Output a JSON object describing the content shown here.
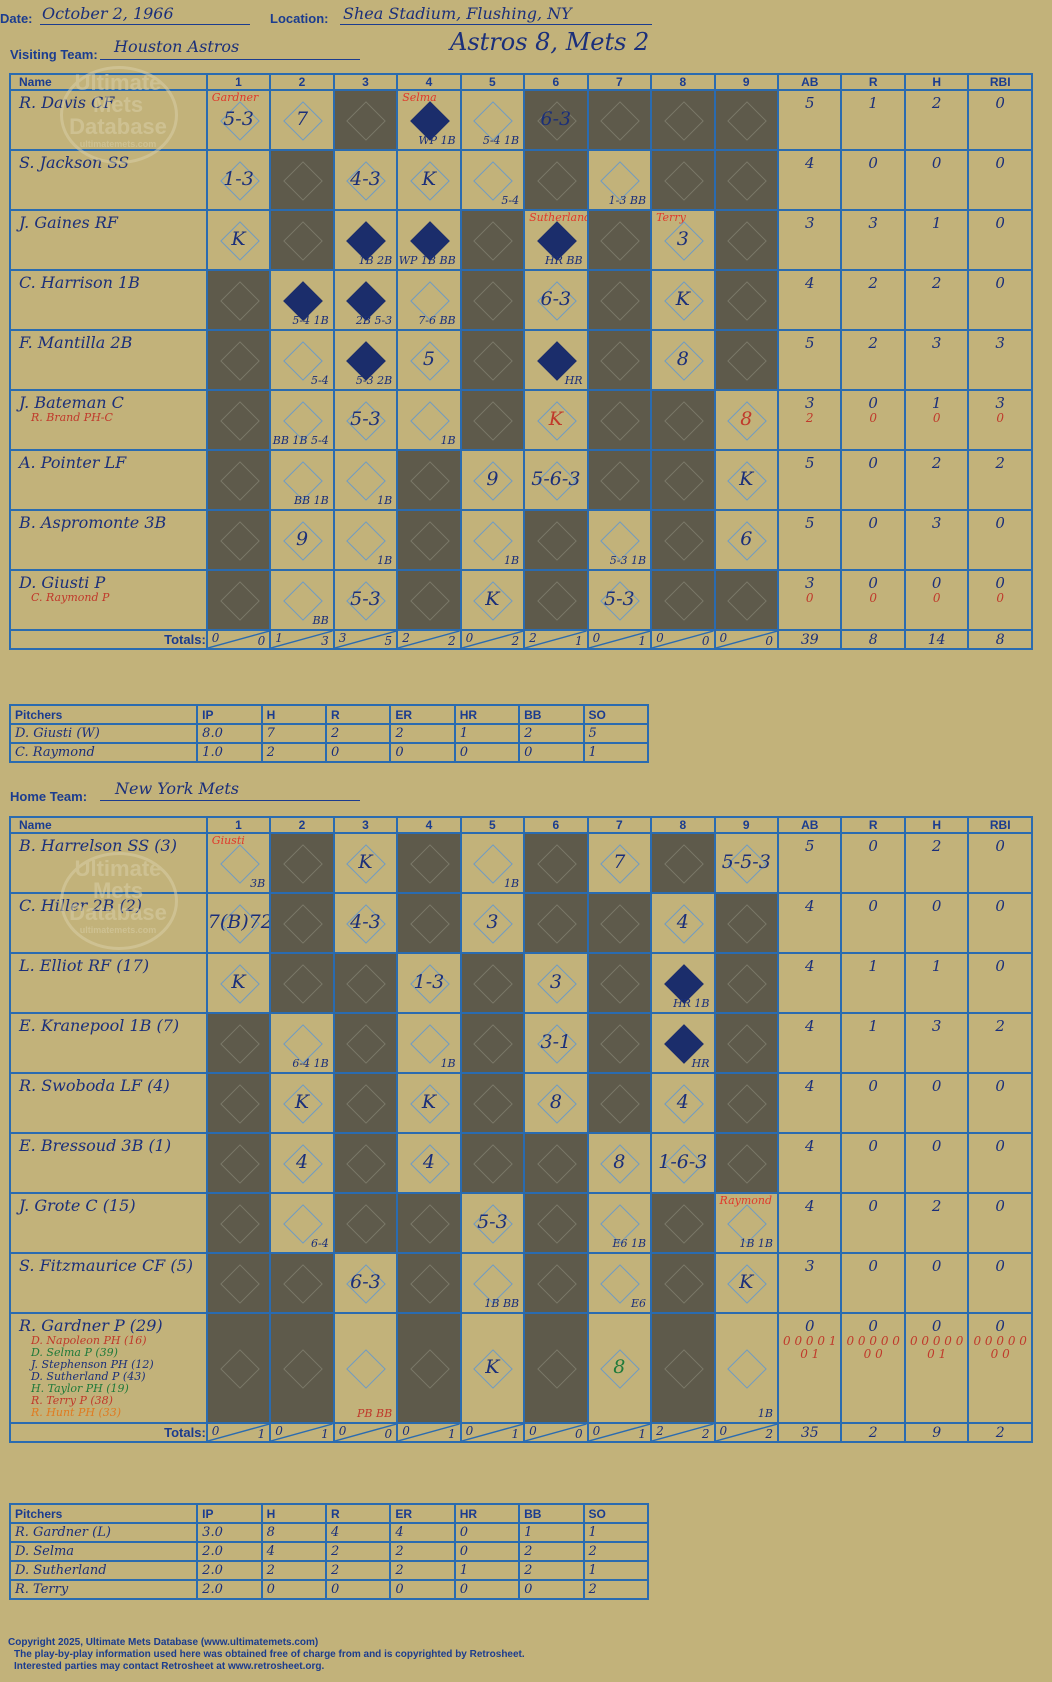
{
  "header": {
    "date_label": "Date:",
    "date": "October 2, 1966",
    "location_label": "Location:",
    "location": "Shea Stadium, Flushing, NY",
    "visiting_label": "Visiting Team:",
    "visiting_team": "Houston Astros",
    "home_label": "Home Team:",
    "home_team": "New York Mets",
    "game_title": "Astros 8, Mets 2"
  },
  "watermark": {
    "line1": "Ultimate",
    "line2": "Mets",
    "line3": "Database",
    "url": "ultimatemets.com"
  },
  "grid_headers": {
    "name": "Name",
    "innings": [
      "1",
      "2",
      "3",
      "4",
      "5",
      "6",
      "7",
      "8",
      "9"
    ],
    "stats": [
      "AB",
      "R",
      "H",
      "RBI"
    ]
  },
  "totals_label": "Totals:",
  "rh": {
    "r": "R",
    "h": "H"
  },
  "visitors": {
    "rows": [
      {
        "name": "R. Davis CF",
        "subs": [],
        "cells": [
          {
            "r": "5-3",
            "pit": "Gardner"
          },
          {
            "r": "7"
          },
          {
            "dark": true
          },
          {
            "r": "",
            "scored": true,
            "pit": "Selma",
            "n": "WP 1B"
          },
          {
            "r": "",
            "n": "5-4 1B"
          },
          {
            "dark": true,
            "r": "6-3"
          },
          {
            "dark": true
          },
          {
            "dark": true
          },
          {
            "dark": true
          }
        ],
        "stats": [
          "5",
          "1",
          "2",
          "0"
        ],
        "stats2": []
      },
      {
        "name": "S. Jackson SS",
        "subs": [],
        "cells": [
          {
            "r": "1-3"
          },
          {
            "dark": true
          },
          {
            "r": "4-3"
          },
          {
            "r": "K"
          },
          {
            "r": "",
            "n": "5-4"
          },
          {
            "dark": true
          },
          {
            "r": "",
            "n": "1-3 BB"
          },
          {
            "dark": true
          },
          {
            "dark": true
          }
        ],
        "stats": [
          "4",
          "0",
          "0",
          "0"
        ],
        "stats2": []
      },
      {
        "name": "J. Gaines RF",
        "subs": [],
        "cells": [
          {
            "r": "K"
          },
          {
            "dark": true
          },
          {
            "r": "",
            "scored": true,
            "n": "1B 2B"
          },
          {
            "r": "",
            "scored": true,
            "n": "WP 1B BB"
          },
          {
            "dark": true
          },
          {
            "r": "",
            "scored": true,
            "pit": "Sutherland",
            "n": "HR BB"
          },
          {
            "dark": true
          },
          {
            "r": "3",
            "pit": "Terry"
          },
          {
            "dark": true
          }
        ],
        "stats": [
          "3",
          "3",
          "1",
          "0"
        ],
        "stats2": []
      },
      {
        "name": "C. Harrison 1B",
        "subs": [],
        "cells": [
          {
            "dark": true
          },
          {
            "r": "",
            "scored": true,
            "n": "5-4 1B"
          },
          {
            "r": "",
            "scored": true,
            "n": "2B 5-3"
          },
          {
            "r": "",
            "n": "7-6 BB"
          },
          {
            "dark": true
          },
          {
            "r": "6-3"
          },
          {
            "dark": true
          },
          {
            "r": "K"
          },
          {
            "dark": true
          }
        ],
        "stats": [
          "4",
          "2",
          "2",
          "0"
        ],
        "stats2": []
      },
      {
        "name": "F. Mantilla 2B",
        "subs": [],
        "cells": [
          {
            "dark": true
          },
          {
            "r": "",
            "n": "5-4"
          },
          {
            "r": "",
            "scored": true,
            "n": "5-3 2B"
          },
          {
            "r": "5"
          },
          {
            "dark": true
          },
          {
            "r": "",
            "scored": true,
            "n": "HR"
          },
          {
            "dark": true
          },
          {
            "r": "8"
          },
          {
            "dark": true
          }
        ],
        "stats": [
          "5",
          "2",
          "3",
          "3"
        ],
        "stats2": []
      },
      {
        "name": "J. Bateman C",
        "subs": [
          {
            "t": "R. Brand PH-C",
            "c": "red"
          }
        ],
        "cells": [
          {
            "dark": true
          },
          {
            "r": "",
            "n": "BB 1B 5-4"
          },
          {
            "r": "5-3"
          },
          {
            "r": "",
            "n": "1B"
          },
          {
            "dark": true
          },
          {
            "r": "K",
            "red": true
          },
          {
            "dark": true
          },
          {
            "dark": true
          },
          {
            "r": "8",
            "red": true
          }
        ],
        "stats": [
          "3",
          "0",
          "1",
          "3"
        ],
        "stats2": [
          "2",
          "0",
          "0",
          "0"
        ]
      },
      {
        "name": "A. Pointer LF",
        "subs": [],
        "cells": [
          {
            "dark": true
          },
          {
            "r": "",
            "n": "BB 1B"
          },
          {
            "r": "",
            "n": "1B"
          },
          {
            "dark": true
          },
          {
            "r": "9"
          },
          {
            "r": "5-6-3"
          },
          {
            "dark": true
          },
          {
            "dark": true
          },
          {
            "r": "K"
          }
        ],
        "stats": [
          "5",
          "0",
          "2",
          "2"
        ],
        "stats2": []
      },
      {
        "name": "B. Aspromonte 3B",
        "subs": [],
        "cells": [
          {
            "dark": true
          },
          {
            "r": "9"
          },
          {
            "r": "",
            "n": "1B"
          },
          {
            "dark": true
          },
          {
            "r": "",
            "n": "1B"
          },
          {
            "dark": true
          },
          {
            "r": "",
            "n": "5-3 1B"
          },
          {
            "dark": true
          },
          {
            "r": "6"
          }
        ],
        "stats": [
          "5",
          "0",
          "3",
          "0"
        ],
        "stats2": []
      },
      {
        "name": "D. Giusti P",
        "subs": [
          {
            "t": "C. Raymond P",
            "c": "red"
          }
        ],
        "cells": [
          {
            "dark": true
          },
          {
            "r": "",
            "n": "BB"
          },
          {
            "r": "5-3"
          },
          {
            "dark": true
          },
          {
            "r": "K"
          },
          {
            "dark": true
          },
          {
            "r": "5-3"
          },
          {
            "dark": true
          },
          {
            "dark": true
          }
        ],
        "stats": [
          "3",
          "0",
          "0",
          "0"
        ],
        "stats2": [
          "0",
          "0",
          "0",
          "0"
        ]
      }
    ],
    "totals": [
      [
        "0",
        "0"
      ],
      [
        "1",
        "3"
      ],
      [
        "3",
        "5"
      ],
      [
        "2",
        "2"
      ],
      [
        "0",
        "2"
      ],
      [
        "2",
        "1"
      ],
      [
        "0",
        "1"
      ],
      [
        "0",
        "0"
      ],
      [
        "0",
        "0"
      ]
    ],
    "total_stats": [
      "39",
      "8",
      "14",
      "8"
    ]
  },
  "visitor_pitchers": {
    "headers": [
      "Pitchers",
      "IP",
      "H",
      "R",
      "ER",
      "HR",
      "BB",
      "SO"
    ],
    "rows": [
      [
        "D. Giusti (W)",
        "8.0",
        "7",
        "2",
        "2",
        "1",
        "2",
        "5"
      ],
      [
        "C. Raymond",
        "1.0",
        "2",
        "0",
        "0",
        "0",
        "0",
        "1"
      ]
    ]
  },
  "home": {
    "rows": [
      {
        "name": "B. Harrelson SS (3)",
        "subs": [],
        "cells": [
          {
            "r": "",
            "pit": "Giusti",
            "n": "3B"
          },
          {
            "dark": true
          },
          {
            "r": "K"
          },
          {
            "dark": true
          },
          {
            "r": "",
            "n": "1B"
          },
          {
            "dark": true
          },
          {
            "r": "7"
          },
          {
            "dark": true
          },
          {
            "r": "5-5-3"
          }
        ],
        "stats": [
          "5",
          "0",
          "2",
          "0"
        ],
        "stats2": []
      },
      {
        "name": "C. Hiller 2B (2)",
        "subs": [],
        "cells": [
          {
            "r": "7(B)72"
          },
          {
            "dark": true
          },
          {
            "r": "4-3"
          },
          {
            "dark": true
          },
          {
            "r": "3"
          },
          {
            "dark": true
          },
          {
            "dark": true
          },
          {
            "r": "4"
          },
          {
            "dark": true
          }
        ],
        "stats": [
          "4",
          "0",
          "0",
          "0"
        ],
        "stats2": []
      },
      {
        "name": "L. Elliot RF (17)",
        "subs": [],
        "cells": [
          {
            "r": "K"
          },
          {
            "dark": true
          },
          {
            "dark": true
          },
          {
            "r": "1-3"
          },
          {
            "dark": true
          },
          {
            "r": "3"
          },
          {
            "dark": true
          },
          {
            "r": "",
            "scored": true,
            "n": "HR 1B"
          },
          {
            "dark": true
          }
        ],
        "stats": [
          "4",
          "1",
          "1",
          "0"
        ],
        "stats2": []
      },
      {
        "name": "E. Kranepool 1B (7)",
        "subs": [],
        "cells": [
          {
            "dark": true
          },
          {
            "r": "",
            "n": "6-4 1B"
          },
          {
            "dark": true
          },
          {
            "r": "",
            "n": "1B"
          },
          {
            "dark": true
          },
          {
            "r": "3-1"
          },
          {
            "dark": true
          },
          {
            "r": "",
            "scored": true,
            "n": "HR"
          },
          {
            "dark": true
          }
        ],
        "stats": [
          "4",
          "1",
          "3",
          "2"
        ],
        "stats2": []
      },
      {
        "name": "R. Swoboda LF (4)",
        "subs": [],
        "cells": [
          {
            "dark": true
          },
          {
            "r": "K"
          },
          {
            "dark": true
          },
          {
            "r": "K"
          },
          {
            "dark": true
          },
          {
            "r": "8"
          },
          {
            "dark": true
          },
          {
            "r": "4"
          },
          {
            "dark": true
          }
        ],
        "stats": [
          "4",
          "0",
          "0",
          "0"
        ],
        "stats2": []
      },
      {
        "name": "E. Bressoud 3B (1)",
        "subs": [],
        "cells": [
          {
            "dark": true
          },
          {
            "r": "4"
          },
          {
            "dark": true
          },
          {
            "r": "4"
          },
          {
            "dark": true
          },
          {
            "dark": true
          },
          {
            "r": "8"
          },
          {
            "r": "1-6-3"
          },
          {
            "dark": true
          }
        ],
        "stats": [
          "4",
          "0",
          "0",
          "0"
        ],
        "stats2": []
      },
      {
        "name": "J. Grote C (15)",
        "subs": [],
        "cells": [
          {
            "dark": true
          },
          {
            "r": "",
            "n": "6-4"
          },
          {
            "dark": true
          },
          {
            "dark": true
          },
          {
            "r": "5-3"
          },
          {
            "dark": true
          },
          {
            "r": "",
            "n": "E6 1B"
          },
          {
            "dark": true
          },
          {
            "r": "",
            "pit": "Raymond",
            "n": "1B 1B"
          }
        ],
        "stats": [
          "4",
          "0",
          "2",
          "0"
        ],
        "stats2": []
      },
      {
        "name": "S. Fitzmaurice CF (5)",
        "subs": [],
        "cells": [
          {
            "dark": true
          },
          {
            "dark": true
          },
          {
            "r": "6-3"
          },
          {
            "dark": true
          },
          {
            "r": "",
            "n": "1B BB"
          },
          {
            "dark": true
          },
          {
            "r": "",
            "n": "E6"
          },
          {
            "dark": true
          },
          {
            "r": "K"
          }
        ],
        "stats": [
          "3",
          "0",
          "0",
          "0"
        ],
        "stats2": []
      },
      {
        "name": "R. Gardner P (29)",
        "subs": [
          {
            "t": "D. Napoleon PH (16)",
            "c": "red"
          },
          {
            "t": "D. Selma P (39)",
            "c": "green"
          },
          {
            "t": "J. Stephenson PH (12)",
            "c": "blue"
          },
          {
            "t": "D. Sutherland P (43)",
            "c": "blue"
          },
          {
            "t": "H. Taylor PH (19)",
            "c": "green"
          },
          {
            "t": "R. Terry P (38)",
            "c": "red"
          },
          {
            "t": "R. Hunt PH (33)",
            "c": "orange"
          }
        ],
        "cells": [
          {
            "dark": true
          },
          {
            "dark": true
          },
          {
            "r": "",
            "n": "PB BB",
            "red": true
          },
          {
            "dark": true
          },
          {
            "r": "K"
          },
          {
            "dark": true
          },
          {
            "r": "8",
            "green": true
          },
          {
            "dark": true
          },
          {
            "r": "",
            "n": "1B"
          }
        ],
        "stats": [
          "0",
          "0",
          "0",
          "0"
        ],
        "stats2": [
          "0 0 0 0 1 0 1",
          "0 0 0 0 0 0 0",
          "0 0 0 0 0 0 1",
          "0 0 0 0 0 0 0"
        ]
      }
    ],
    "totals": [
      [
        "0",
        "1"
      ],
      [
        "0",
        "1"
      ],
      [
        "0",
        "0"
      ],
      [
        "0",
        "1"
      ],
      [
        "0",
        "1"
      ],
      [
        "0",
        "0"
      ],
      [
        "0",
        "1"
      ],
      [
        "2",
        "2"
      ],
      [
        "0",
        "2"
      ]
    ],
    "total_stats": [
      "35",
      "2",
      "9",
      "2"
    ]
  },
  "home_pitchers": {
    "headers": [
      "Pitchers",
      "IP",
      "H",
      "R",
      "ER",
      "HR",
      "BB",
      "SO"
    ],
    "rows": [
      [
        "R. Gardner (L)",
        "3.0",
        "8",
        "4",
        "4",
        "0",
        "1",
        "1"
      ],
      [
        "D. Selma",
        "2.0",
        "4",
        "2",
        "2",
        "0",
        "2",
        "2"
      ],
      [
        "D. Sutherland",
        "2.0",
        "2",
        "2",
        "2",
        "1",
        "2",
        "1"
      ],
      [
        "R. Terry",
        "2.0",
        "0",
        "0",
        "0",
        "0",
        "0",
        "2"
      ]
    ]
  },
  "copyright": {
    "line1": "Copyright 2025, Ultimate Mets Database (www.ultimatemets.com)",
    "line2": "The play-by-play information used here was obtained free of charge from and is copyrighted by Retrosheet.",
    "line3": "Interested parties may contact Retrosheet at www.retrosheet.org."
  }
}
